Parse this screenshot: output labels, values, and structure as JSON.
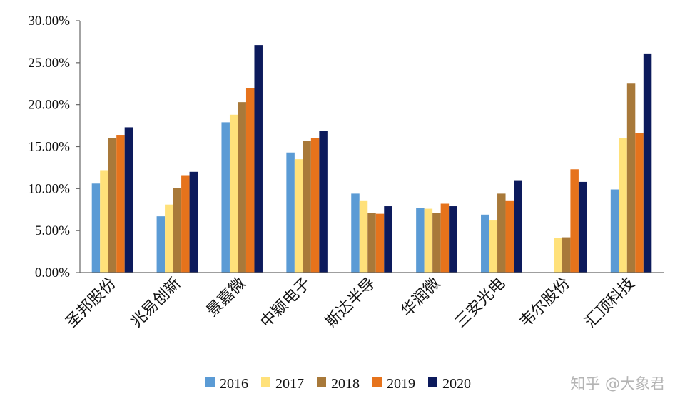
{
  "chart_data": {
    "type": "bar",
    "title": "",
    "xlabel": "",
    "ylabel": "",
    "ylim": [
      0,
      0.3
    ],
    "yticks": [
      "0.00%",
      "5.00%",
      "10.00%",
      "15.00%",
      "20.00%",
      "25.00%",
      "30.00%"
    ],
    "grid": false,
    "legend_position": "bottom",
    "categories": [
      "圣邦股份",
      "兆易创新",
      "景嘉微",
      "中颖电子",
      "斯达半导",
      "华润微",
      "三安光电",
      "韦尔股份",
      "汇顶科技"
    ],
    "series": [
      {
        "name": "2016",
        "color": "#5b9bd5",
        "values": [
          0.106,
          0.067,
          0.179,
          0.143,
          0.094,
          0.077,
          0.069,
          null,
          0.099
        ]
      },
      {
        "name": "2017",
        "color": "#ffe17a",
        "values": [
          0.122,
          0.081,
          0.188,
          0.135,
          0.086,
          0.076,
          0.062,
          0.041,
          0.16
        ]
      },
      {
        "name": "2018",
        "color": "#a8793a",
        "values": [
          0.16,
          0.101,
          0.203,
          0.157,
          0.071,
          0.071,
          0.094,
          0.042,
          0.225
        ]
      },
      {
        "name": "2019",
        "color": "#e6731c",
        "values": [
          0.164,
          0.116,
          0.22,
          0.16,
          0.07,
          0.082,
          0.086,
          0.123,
          0.166
        ]
      },
      {
        "name": "2020",
        "color": "#0c1a5c",
        "values": [
          0.173,
          0.12,
          0.271,
          0.169,
          0.079,
          0.079,
          0.11,
          0.108,
          0.261
        ]
      }
    ]
  },
  "watermark": "知乎 @大象君"
}
